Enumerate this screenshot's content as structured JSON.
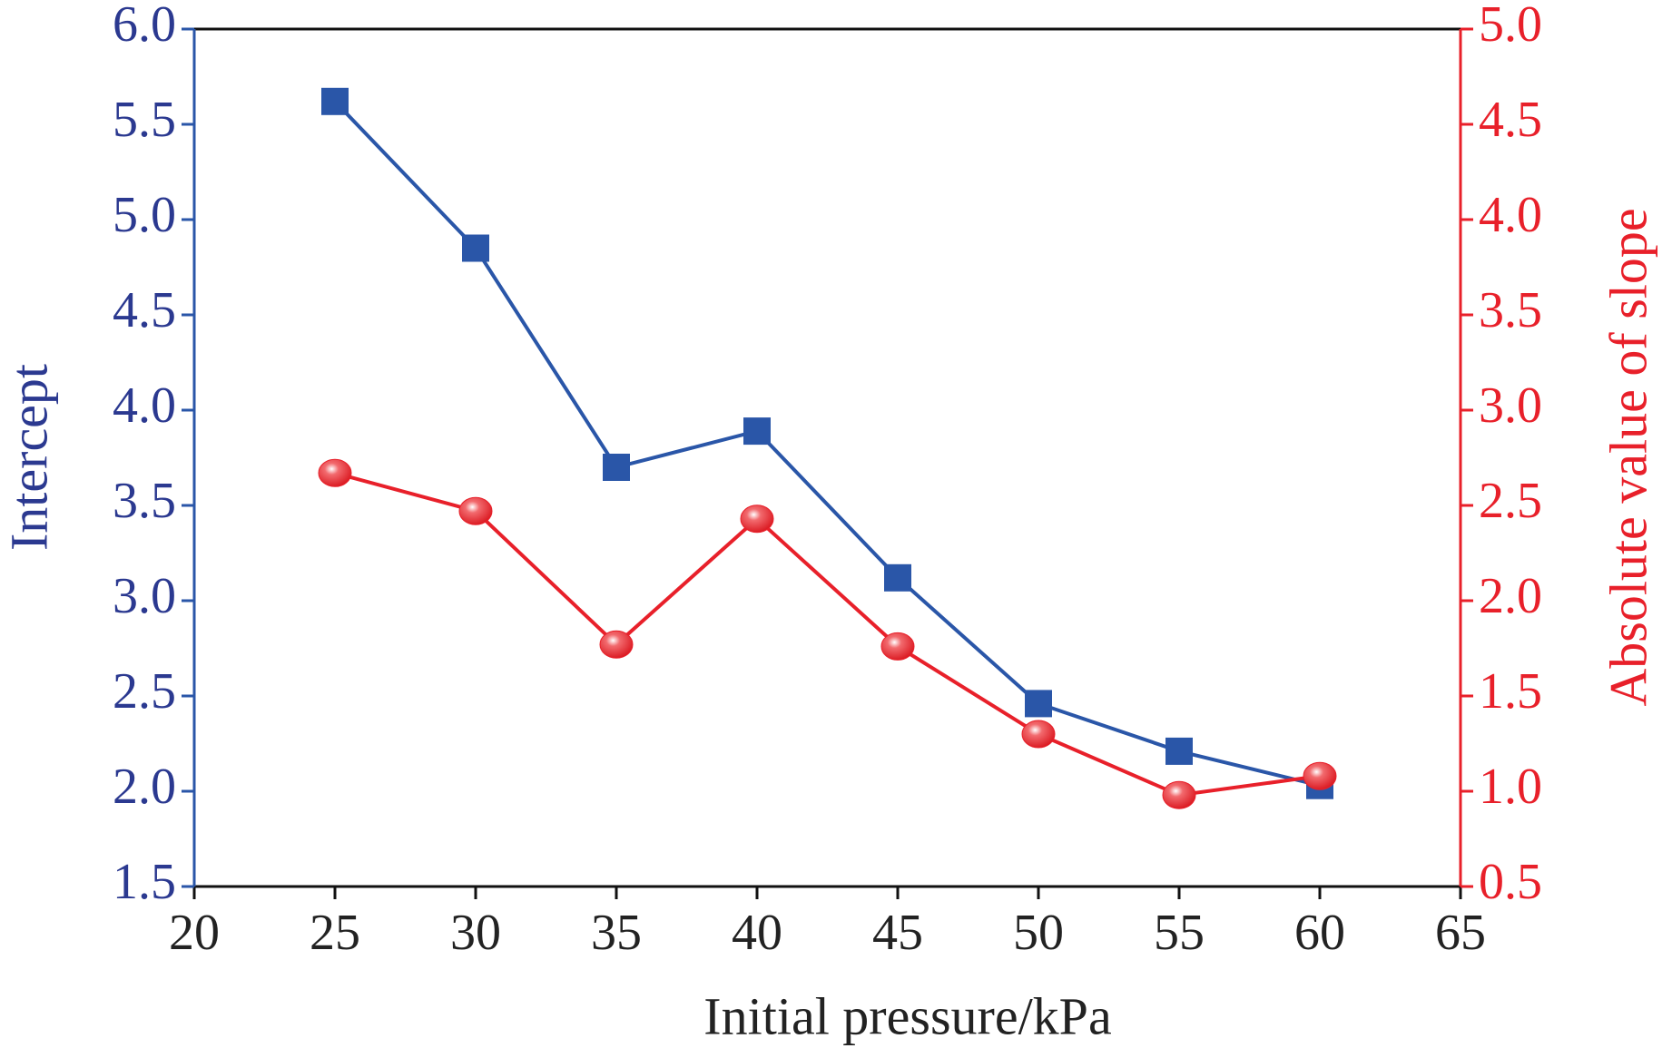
{
  "chart_data": {
    "type": "line",
    "x_label": "Initial pressure/kPa",
    "y_label": "Intercept",
    "y2_label": "Absolute value of slope",
    "x": [
      25,
      30,
      35,
      40,
      45,
      50,
      55,
      60
    ],
    "series": [
      {
        "name": "Intercept",
        "color": "#2a56a8",
        "marker": "square",
        "values": [
          5.62,
          4.85,
          3.7,
          3.89,
          3.12,
          2.46,
          2.21,
          2.03
        ]
      },
      {
        "name": "Absolute value of slope",
        "color": "#e8202a",
        "marker": "circle",
        "axis": "y2",
        "values": [
          2.67,
          2.47,
          1.77,
          2.43,
          1.76,
          1.3,
          0.98,
          1.08
        ]
      }
    ],
    "xlim": [
      20,
      65
    ],
    "xticks": [
      20,
      25,
      30,
      35,
      40,
      45,
      50,
      55,
      60,
      65
    ],
    "ylim": [
      1.5,
      6.0
    ],
    "yticks": [
      1.5,
      {
        "value": 2,
        "label": "2.0"
      },
      2.5,
      {
        "value": 3,
        "label": "3.0"
      },
      3.5,
      {
        "value": 4,
        "label": "4.0"
      },
      4.5,
      {
        "value": 5,
        "label": "5.0"
      },
      5.5,
      {
        "value": 6,
        "label": "6.0"
      }
    ],
    "y2lim": [
      0.5,
      5.0
    ],
    "y2ticks": [
      0.5,
      {
        "value": 1,
        "label": "1.0"
      },
      1.5,
      {
        "value": 2,
        "label": "2.0"
      },
      2.5,
      {
        "value": 3,
        "label": "3.0"
      },
      3.5,
      {
        "value": 4,
        "label": "4.0"
      },
      4.5,
      {
        "value": 5,
        "label": "5.0"
      }
    ],
    "y_color": "#2b3990",
    "y2_color": "#e8202a"
  }
}
